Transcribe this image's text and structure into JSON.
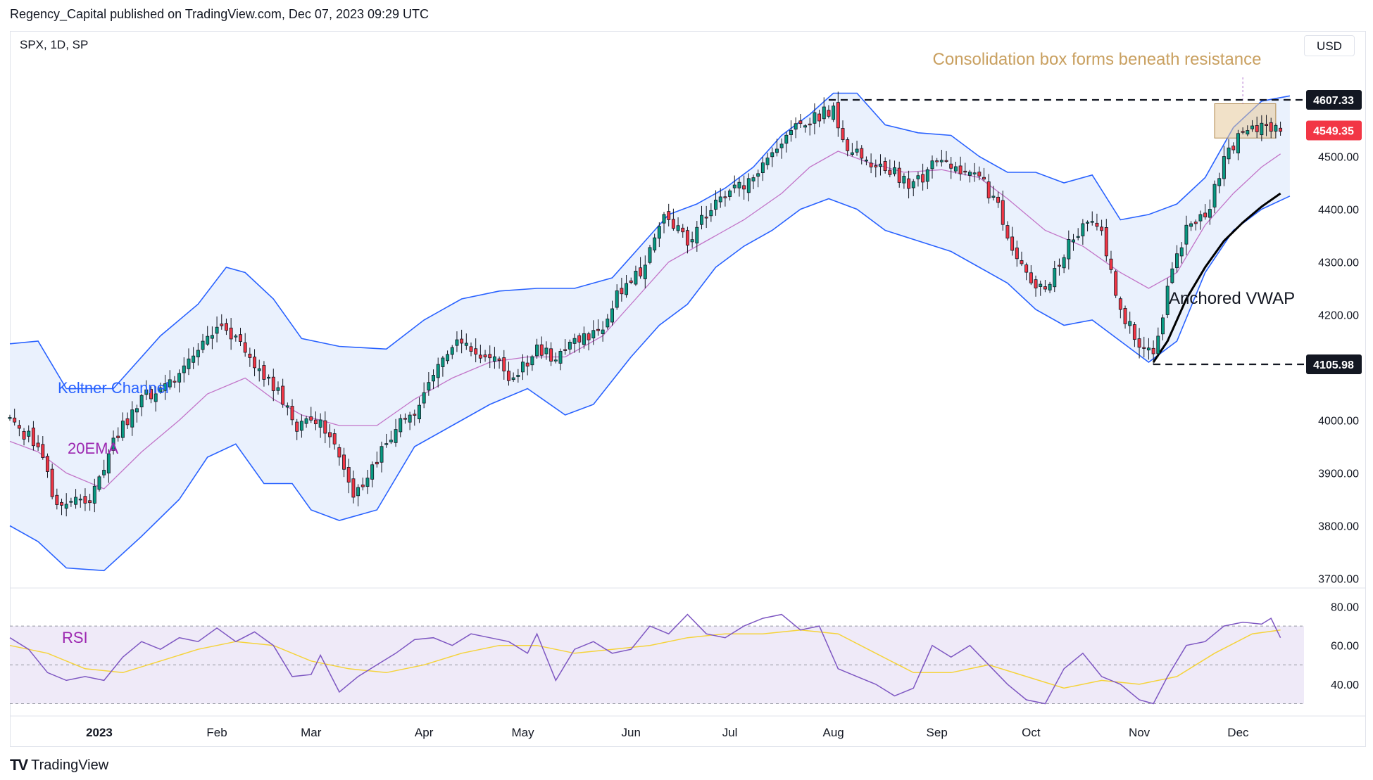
{
  "header": {
    "publisher": "Regency_Capital published on TradingView.com, Dec 07, 2023 09:29 UTC"
  },
  "symbol": "SPX, 1D, SP",
  "currency": "USD",
  "brand": "TradingView",
  "chart_data": [
    {
      "type": "candlestick",
      "y_ticks": [
        3700,
        3800,
        3900,
        4000,
        4100,
        4200,
        4300,
        4400,
        4500
      ],
      "y_tick_labels": [
        "3700.00",
        "3800.00",
        "3900.00",
        "4000.00",
        "4100.00",
        "4200.00",
        "4300.00",
        "4400.00",
        "4500.00"
      ],
      "ylim": [
        3690,
        4670
      ],
      "x_month_labels": [
        {
          "label": "2023",
          "d": 19
        },
        {
          "label": "Feb",
          "d": 44
        },
        {
          "label": "Mar",
          "d": 64
        },
        {
          "label": "Apr",
          "d": 88
        },
        {
          "label": "May",
          "d": 109
        },
        {
          "label": "Jun",
          "d": 132
        },
        {
          "label": "Jul",
          "d": 153
        },
        {
          "label": "Aug",
          "d": 175
        },
        {
          "label": "Sep",
          "d": 197
        },
        {
          "label": "Oct",
          "d": 217
        },
        {
          "label": "Nov",
          "d": 240
        },
        {
          "label": "Dec",
          "d": 261
        }
      ],
      "x_domain": [
        0,
        275
      ],
      "price_labels": [
        {
          "value": 4607.33,
          "text": "4607.33",
          "bg": "#131722"
        },
        {
          "value": 4549.35,
          "text": "4549.35",
          "bg": "#f23645"
        },
        {
          "value": 4105.98,
          "text": "4105.98",
          "bg": "#131722"
        }
      ],
      "levels": [
        {
          "value": 4607.33,
          "from": 174,
          "to": 275,
          "style": "dashed"
        },
        {
          "value": 4105.98,
          "from": 243,
          "to": 275,
          "style": "dashed"
        }
      ],
      "consolidation_box": {
        "from": 256,
        "to": 269,
        "low": 4535,
        "high": 4600,
        "color": "#e6c99a"
      },
      "annotations": [
        {
          "text": "Consolidation box forms beneath resistance",
          "color": "#c9a060"
        },
        {
          "text": "Keltner Channel",
          "color": "#2962ff"
        },
        {
          "text": "20EMA",
          "color": "#9c27b0"
        },
        {
          "text": "Anchored VWAP",
          "color": "#131722"
        }
      ],
      "colors": {
        "up": "#089981",
        "down": "#f23645",
        "keltner": "#2962ff",
        "keltner_fill": "#eaf1fd",
        "ema": "#c274c8",
        "vwap": "#000000"
      },
      "candle_anchors": [
        [
          0,
          4000
        ],
        [
          6,
          3950
        ],
        [
          10,
          3830
        ],
        [
          17,
          3850
        ],
        [
          22,
          3960
        ],
        [
          28,
          4040
        ],
        [
          34,
          4070
        ],
        [
          41,
          4150
        ],
        [
          45,
          4190
        ],
        [
          51,
          4110
        ],
        [
          55,
          4080
        ],
        [
          61,
          3990
        ],
        [
          64,
          4010
        ],
        [
          68,
          3980
        ],
        [
          73,
          3860
        ],
        [
          76,
          3890
        ],
        [
          82,
          3990
        ],
        [
          86,
          4010
        ],
        [
          91,
          4100
        ],
        [
          96,
          4150
        ],
        [
          103,
          4110
        ],
        [
          107,
          4080
        ],
        [
          112,
          4130
        ],
        [
          117,
          4120
        ],
        [
          120,
          4150
        ],
        [
          126,
          4180
        ],
        [
          130,
          4250
        ],
        [
          134,
          4280
        ],
        [
          139,
          4400
        ],
        [
          144,
          4340
        ],
        [
          148,
          4390
        ],
        [
          153,
          4440
        ],
        [
          157,
          4450
        ],
        [
          162,
          4510
        ],
        [
          168,
          4560
        ],
        [
          172,
          4580
        ],
        [
          175,
          4590
        ],
        [
          177,
          4520
        ],
        [
          182,
          4490
        ],
        [
          188,
          4470
        ],
        [
          192,
          4440
        ],
        [
          197,
          4500
        ],
        [
          200,
          4470
        ],
        [
          205,
          4480
        ],
        [
          210,
          4400
        ],
        [
          214,
          4300
        ],
        [
          220,
          4240
        ],
        [
          224,
          4320
        ],
        [
          228,
          4370
        ],
        [
          232,
          4360
        ],
        [
          236,
          4200
        ],
        [
          240,
          4150
        ],
        [
          243,
          4120
        ],
        [
          246,
          4250
        ],
        [
          250,
          4370
        ],
        [
          254,
          4380
        ],
        [
          258,
          4500
        ],
        [
          262,
          4550
        ],
        [
          266,
          4560
        ],
        [
          268,
          4560
        ],
        [
          270,
          4549
        ]
      ],
      "keltner_upper_anchors": [
        [
          0,
          4145
        ],
        [
          6,
          4150
        ],
        [
          12,
          4060
        ],
        [
          22,
          4060
        ],
        [
          32,
          4160
        ],
        [
          40,
          4220
        ],
        [
          46,
          4290
        ],
        [
          50,
          4280
        ],
        [
          56,
          4230
        ],
        [
          62,
          4155
        ],
        [
          70,
          4140
        ],
        [
          80,
          4135
        ],
        [
          88,
          4190
        ],
        [
          96,
          4230
        ],
        [
          104,
          4245
        ],
        [
          112,
          4250
        ],
        [
          120,
          4250
        ],
        [
          128,
          4270
        ],
        [
          134,
          4330
        ],
        [
          140,
          4390
        ],
        [
          146,
          4410
        ],
        [
          152,
          4440
        ],
        [
          158,
          4480
        ],
        [
          164,
          4540
        ],
        [
          170,
          4580
        ],
        [
          175,
          4620
        ],
        [
          180,
          4620
        ],
        [
          186,
          4560
        ],
        [
          193,
          4545
        ],
        [
          200,
          4540
        ],
        [
          206,
          4500
        ],
        [
          212,
          4470
        ],
        [
          218,
          4470
        ],
        [
          224,
          4450
        ],
        [
          230,
          4465
        ],
        [
          236,
          4380
        ],
        [
          242,
          4390
        ],
        [
          248,
          4410
        ],
        [
          254,
          4460
        ],
        [
          260,
          4555
        ],
        [
          266,
          4605
        ],
        [
          272,
          4615
        ]
      ],
      "keltner_lower_anchors": [
        [
          0,
          3800
        ],
        [
          6,
          3770
        ],
        [
          12,
          3720
        ],
        [
          20,
          3715
        ],
        [
          28,
          3780
        ],
        [
          36,
          3850
        ],
        [
          42,
          3930
        ],
        [
          48,
          3955
        ],
        [
          54,
          3880
        ],
        [
          60,
          3880
        ],
        [
          64,
          3830
        ],
        [
          70,
          3810
        ],
        [
          78,
          3830
        ],
        [
          86,
          3950
        ],
        [
          94,
          3990
        ],
        [
          102,
          4030
        ],
        [
          110,
          4060
        ],
        [
          118,
          4010
        ],
        [
          124,
          4030
        ],
        [
          132,
          4120
        ],
        [
          138,
          4180
        ],
        [
          144,
          4220
        ],
        [
          150,
          4290
        ],
        [
          156,
          4330
        ],
        [
          162,
          4360
        ],
        [
          168,
          4400
        ],
        [
          174,
          4420
        ],
        [
          180,
          4400
        ],
        [
          186,
          4360
        ],
        [
          193,
          4340
        ],
        [
          200,
          4320
        ],
        [
          206,
          4290
        ],
        [
          212,
          4260
        ],
        [
          218,
          4210
        ],
        [
          224,
          4180
        ],
        [
          230,
          4190
        ],
        [
          236,
          4150
        ],
        [
          242,
          4110
        ],
        [
          248,
          4150
        ],
        [
          254,
          4280
        ],
        [
          260,
          4360
        ],
        [
          266,
          4400
        ],
        [
          272,
          4425
        ]
      ],
      "ema20_anchors": [
        [
          0,
          3960
        ],
        [
          6,
          3940
        ],
        [
          12,
          3900
        ],
        [
          20,
          3870
        ],
        [
          28,
          3940
        ],
        [
          36,
          4000
        ],
        [
          42,
          4050
        ],
        [
          50,
          4080
        ],
        [
          56,
          4040
        ],
        [
          62,
          4010
        ],
        [
          70,
          3990
        ],
        [
          78,
          3990
        ],
        [
          86,
          4040
        ],
        [
          94,
          4080
        ],
        [
          102,
          4110
        ],
        [
          110,
          4120
        ],
        [
          118,
          4120
        ],
        [
          126,
          4160
        ],
        [
          132,
          4220
        ],
        [
          140,
          4300
        ],
        [
          148,
          4340
        ],
        [
          156,
          4380
        ],
        [
          164,
          4430
        ],
        [
          170,
          4480
        ],
        [
          176,
          4510
        ],
        [
          182,
          4490
        ],
        [
          190,
          4470
        ],
        [
          198,
          4475
        ],
        [
          206,
          4460
        ],
        [
          212,
          4420
        ],
        [
          220,
          4360
        ],
        [
          228,
          4330
        ],
        [
          236,
          4280
        ],
        [
          242,
          4250
        ],
        [
          248,
          4280
        ],
        [
          254,
          4370
        ],
        [
          260,
          4430
        ],
        [
          266,
          4480
        ],
        [
          270,
          4505
        ]
      ],
      "vwap_anchors": [
        [
          243,
          4110
        ],
        [
          246,
          4150
        ],
        [
          250,
          4230
        ],
        [
          254,
          4290
        ],
        [
          258,
          4340
        ],
        [
          262,
          4375
        ],
        [
          266,
          4405
        ],
        [
          270,
          4430
        ]
      ]
    },
    {
      "type": "line",
      "indicator": "RSI",
      "y_ticks": [
        40,
        60,
        80
      ],
      "y_tick_labels": [
        "40.00",
        "60.00",
        "80.00"
      ],
      "ylim": [
        28,
        86
      ],
      "band": [
        30,
        70
      ],
      "colors": {
        "rsi": "#7e57c2",
        "signal": "#f5d33b",
        "band_fill": "#efeaf8"
      },
      "rsi_anchors": [
        [
          0,
          64
        ],
        [
          4,
          58
        ],
        [
          8,
          46
        ],
        [
          12,
          42
        ],
        [
          16,
          44
        ],
        [
          20,
          42
        ],
        [
          24,
          54
        ],
        [
          28,
          62
        ],
        [
          32,
          58
        ],
        [
          36,
          64
        ],
        [
          40,
          62
        ],
        [
          44,
          69
        ],
        [
          48,
          62
        ],
        [
          52,
          67
        ],
        [
          56,
          60
        ],
        [
          60,
          44
        ],
        [
          64,
          45
        ],
        [
          66,
          55
        ],
        [
          70,
          36
        ],
        [
          74,
          44
        ],
        [
          78,
          50
        ],
        [
          82,
          56
        ],
        [
          86,
          63
        ],
        [
          90,
          64
        ],
        [
          94,
          60
        ],
        [
          98,
          66
        ],
        [
          102,
          64
        ],
        [
          106,
          62
        ],
        [
          110,
          56
        ],
        [
          112,
          66
        ],
        [
          116,
          42
        ],
        [
          120,
          58
        ],
        [
          124,
          62
        ],
        [
          128,
          56
        ],
        [
          132,
          58
        ],
        [
          136,
          70
        ],
        [
          140,
          66
        ],
        [
          144,
          76
        ],
        [
          148,
          66
        ],
        [
          152,
          64
        ],
        [
          156,
          70
        ],
        [
          160,
          74
        ],
        [
          164,
          76
        ],
        [
          168,
          68
        ],
        [
          172,
          70
        ],
        [
          176,
          48
        ],
        [
          180,
          44
        ],
        [
          184,
          40
        ],
        [
          188,
          34
        ],
        [
          192,
          38
        ],
        [
          196,
          60
        ],
        [
          200,
          54
        ],
        [
          204,
          60
        ],
        [
          208,
          50
        ],
        [
          212,
          40
        ],
        [
          216,
          32
        ],
        [
          220,
          30
        ],
        [
          224,
          48
        ],
        [
          228,
          56
        ],
        [
          232,
          44
        ],
        [
          236,
          40
        ],
        [
          240,
          32
        ],
        [
          243,
          30
        ],
        [
          246,
          44
        ],
        [
          250,
          60
        ],
        [
          254,
          62
        ],
        [
          258,
          70
        ],
        [
          262,
          72
        ],
        [
          266,
          71
        ],
        [
          268,
          74
        ],
        [
          270,
          64
        ]
      ],
      "signal_anchors": [
        [
          0,
          60
        ],
        [
          8,
          56
        ],
        [
          16,
          48
        ],
        [
          24,
          46
        ],
        [
          32,
          52
        ],
        [
          40,
          58
        ],
        [
          48,
          62
        ],
        [
          56,
          60
        ],
        [
          64,
          52
        ],
        [
          72,
          48
        ],
        [
          80,
          46
        ],
        [
          88,
          50
        ],
        [
          96,
          56
        ],
        [
          104,
          60
        ],
        [
          112,
          60
        ],
        [
          120,
          56
        ],
        [
          128,
          58
        ],
        [
          136,
          60
        ],
        [
          144,
          64
        ],
        [
          152,
          66
        ],
        [
          160,
          66
        ],
        [
          168,
          68
        ],
        [
          176,
          66
        ],
        [
          184,
          56
        ],
        [
          192,
          46
        ],
        [
          200,
          46
        ],
        [
          208,
          50
        ],
        [
          216,
          44
        ],
        [
          224,
          38
        ],
        [
          232,
          42
        ],
        [
          240,
          40
        ],
        [
          248,
          44
        ],
        [
          256,
          56
        ],
        [
          264,
          66
        ],
        [
          270,
          68
        ]
      ]
    }
  ]
}
